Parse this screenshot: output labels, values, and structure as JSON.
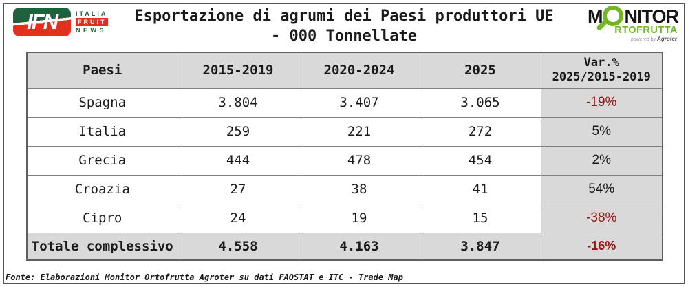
{
  "header": {
    "title_line1": "Esportazione di agrumi dei Paesi produttori UE",
    "title_line2": "- 000 Tonnellate",
    "ifn": {
      "acronym": "IFN",
      "italia": "ITALIA",
      "fruit": "FRUIT",
      "news": "NEWS"
    },
    "monitor": {
      "m": "M",
      "nitor": "NITOR",
      "row2": "RTOFRUTTA",
      "powered_by": "powered by ",
      "agroter": "Agroter"
    }
  },
  "table": {
    "columns": [
      "Paesi",
      "2015-2019",
      "2020-2024",
      "2025"
    ],
    "var_header": {
      "line1": "Var.%",
      "line2": "2025/2015-2019"
    },
    "rows": [
      {
        "paese": "Spagna",
        "v1": "3.804",
        "v2": "3.407",
        "v3": "3.065",
        "var_pct": "-19%",
        "negative": true
      },
      {
        "paese": "Italia",
        "v1": "259",
        "v2": "221",
        "v3": "272",
        "var_pct": "5%",
        "negative": false
      },
      {
        "paese": "Grecia",
        "v1": "444",
        "v2": "478",
        "v3": "454",
        "var_pct": "2%",
        "negative": false
      },
      {
        "paese": "Croazia",
        "v1": "27",
        "v2": "38",
        "v3": "41",
        "var_pct": "54%",
        "negative": false
      },
      {
        "paese": "Cipro",
        "v1": "24",
        "v2": "19",
        "v3": "15",
        "var_pct": "-38%",
        "negative": true
      }
    ],
    "total": {
      "paese": "Totale complessivo",
      "v1": "4.558",
      "v2": "4.163",
      "v3": "3.847",
      "var_pct": "-16%",
      "negative": true
    }
  },
  "footer": {
    "text": "Fonte: Elaborazioni Monitor Ortofrutta Agroter su dati FAOSTAT e ITC - Trade Map"
  },
  "colors": {
    "cell_gray": "#d9d9d9",
    "border_gray": "#808080",
    "negative_red": "#9b1412",
    "ifn_green": "#20603c",
    "ifn_red": "#e1301f",
    "monitor_green": "#72b626"
  },
  "chart_data": {
    "type": "table",
    "title": "Esportazione di agrumi dei Paesi produttori UE - 000 Tonnellate",
    "columns": [
      "Paesi",
      "2015-2019",
      "2020-2024",
      "2025",
      "Var.% 2025/2015-2019"
    ],
    "rows": [
      [
        "Spagna",
        3804,
        3407,
        3065,
        "-19%"
      ],
      [
        "Italia",
        259,
        221,
        272,
        "5%"
      ],
      [
        "Grecia",
        444,
        478,
        454,
        "2%"
      ],
      [
        "Croazia",
        27,
        38,
        41,
        "54%"
      ],
      [
        "Cipro",
        24,
        19,
        15,
        "-38%"
      ],
      [
        "Totale complessivo",
        4558,
        4163,
        3847,
        "-16%"
      ]
    ],
    "units": "000 Tonnellate",
    "source": "Fonte: Elaborazioni Monitor Ortofrutta Agroter su dati FAOSTAT e ITC - Trade Map"
  }
}
